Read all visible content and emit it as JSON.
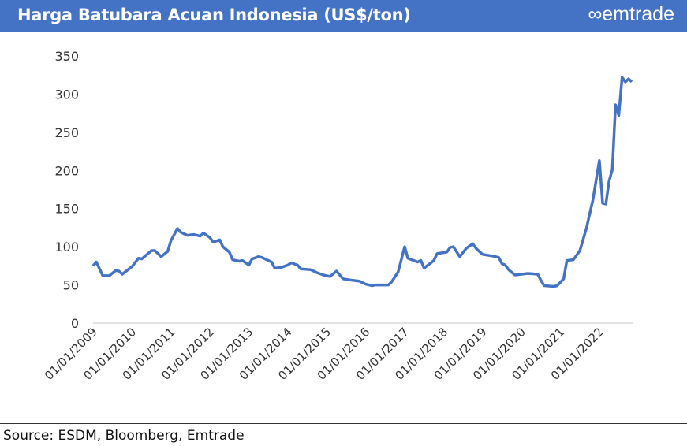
{
  "header": {
    "title": "Harga Batubara Acuan Indonesia (US$/ton)",
    "logo": "emtrade",
    "logo_icon": "infinity-icon"
  },
  "source": "Source: ESDM, Bloomberg, Emtrade",
  "colors": {
    "header": "#4472c4",
    "line": "#4472c4"
  },
  "chart_data": {
    "type": "line",
    "title": "Harga Batubara Acuan Indonesia (US$/ton)",
    "ylim": [
      0,
      350
    ],
    "yticks": [
      0,
      50,
      100,
      150,
      200,
      250,
      300,
      350
    ],
    "xticks": [
      "01/01/2009",
      "01/01/2010",
      "01/01/2011",
      "01/01/2012",
      "01/01/2013",
      "01/01/2014",
      "01/01/2015",
      "01/01/2016",
      "01/01/2017",
      "01/01/2018",
      "01/01/2019",
      "01/01/2020",
      "01/01/2021",
      "01/01/2022"
    ],
    "grid": false,
    "points": [
      [
        "2009-01",
        75
      ],
      [
        "2009-02",
        80
      ],
      [
        "2009-04",
        62
      ],
      [
        "2009-06",
        62
      ],
      [
        "2009-08",
        69
      ],
      [
        "2009-09",
        68
      ],
      [
        "2009-10",
        64
      ],
      [
        "2010-01",
        74
      ],
      [
        "2010-03",
        85
      ],
      [
        "2010-04",
        84
      ],
      [
        "2010-07",
        95
      ],
      [
        "2010-08",
        95
      ],
      [
        "2010-10",
        87
      ],
      [
        "2010-12",
        94
      ],
      [
        "2011-01",
        108
      ],
      [
        "2011-03",
        124
      ],
      [
        "2011-04",
        119
      ],
      [
        "2011-06",
        115
      ],
      [
        "2011-08",
        116
      ],
      [
        "2011-10",
        114
      ],
      [
        "2011-11",
        118
      ],
      [
        "2012-01",
        112
      ],
      [
        "2012-02",
        106
      ],
      [
        "2012-04",
        109
      ],
      [
        "2012-05",
        100
      ],
      [
        "2012-07",
        93
      ],
      [
        "2012-08",
        83
      ],
      [
        "2012-10",
        81
      ],
      [
        "2012-11",
        82
      ],
      [
        "2013-01",
        76
      ],
      [
        "2013-02",
        84
      ],
      [
        "2013-04",
        87
      ],
      [
        "2013-05",
        86
      ],
      [
        "2013-07",
        82
      ],
      [
        "2013-08",
        80
      ],
      [
        "2013-09",
        72
      ],
      [
        "2013-11",
        73
      ],
      [
        "2014-01",
        76
      ],
      [
        "2014-02",
        79
      ],
      [
        "2014-04",
        76
      ],
      [
        "2014-05",
        71
      ],
      [
        "2014-08",
        70
      ],
      [
        "2014-10",
        66
      ],
      [
        "2014-12",
        63
      ],
      [
        "2015-02",
        61
      ],
      [
        "2015-04",
        68
      ],
      [
        "2015-06",
        58
      ],
      [
        "2015-09",
        56
      ],
      [
        "2015-11",
        55
      ],
      [
        "2016-01",
        51
      ],
      [
        "2016-03",
        49
      ],
      [
        "2016-04",
        50
      ],
      [
        "2016-08",
        50
      ],
      [
        "2016-09",
        54
      ],
      [
        "2016-11",
        67
      ],
      [
        "2017-01",
        100
      ],
      [
        "2017-02",
        85
      ],
      [
        "2017-05",
        80
      ],
      [
        "2017-06",
        82
      ],
      [
        "2017-07",
        72
      ],
      [
        "2017-10",
        82
      ],
      [
        "2017-11",
        91
      ],
      [
        "2018-02",
        93
      ],
      [
        "2018-03",
        99
      ],
      [
        "2018-04",
        100
      ],
      [
        "2018-06",
        87
      ],
      [
        "2018-08",
        98
      ],
      [
        "2018-10",
        104
      ],
      [
        "2018-11",
        98
      ],
      [
        "2019-01",
        90
      ],
      [
        "2019-04",
        88
      ],
      [
        "2019-06",
        86
      ],
      [
        "2019-07",
        78
      ],
      [
        "2019-08",
        76
      ],
      [
        "2019-09",
        70
      ],
      [
        "2019-11",
        63
      ],
      [
        "2020-01",
        64
      ],
      [
        "2020-03",
        65
      ],
      [
        "2020-06",
        64
      ],
      [
        "2020-07",
        56
      ],
      [
        "2020-08",
        49
      ],
      [
        "2020-11",
        48
      ],
      [
        "2020-12",
        49
      ],
      [
        "2021-02",
        58
      ],
      [
        "2021-03",
        82
      ],
      [
        "2021-05",
        83
      ],
      [
        "2021-07",
        95
      ],
      [
        "2021-09",
        124
      ],
      [
        "2021-11",
        161
      ],
      [
        "2022-01",
        213
      ],
      [
        "2022-02",
        157
      ],
      [
        "2022-03",
        156
      ],
      [
        "2022-04",
        186
      ],
      [
        "2022-05",
        201
      ],
      [
        "2022-06",
        286
      ],
      [
        "2022-07",
        272
      ],
      [
        "2022-08",
        322
      ],
      [
        "2022-09",
        316
      ],
      [
        "2022-10",
        320
      ],
      [
        "2022-11",
        316
      ]
    ]
  }
}
